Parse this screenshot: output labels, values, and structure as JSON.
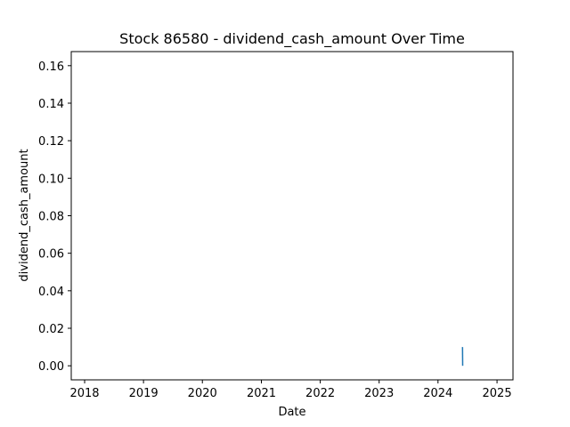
{
  "chart_data": {
    "type": "line",
    "title": "Stock 86580 - dividend_cash_amount Over Time",
    "xlabel": "Date",
    "ylabel": "dividend_cash_amount",
    "x_ticks": [
      "2018",
      "2019",
      "2020",
      "2021",
      "2022",
      "2023",
      "2024",
      "2025"
    ],
    "y_ticks": [
      "0.00",
      "0.02",
      "0.04",
      "0.06",
      "0.08",
      "0.10",
      "0.12",
      "0.14",
      "0.16"
    ],
    "xlim": [
      "2017-10-10",
      "2025-04-10"
    ],
    "ylim": [
      -0.0075,
      0.1675
    ],
    "grid": false,
    "series": [
      {
        "color": "#1f77b4",
        "x": [
          "2024-06-01",
          "2024-06-02"
        ],
        "y": [
          0.01,
          0.0
        ]
      }
    ]
  }
}
